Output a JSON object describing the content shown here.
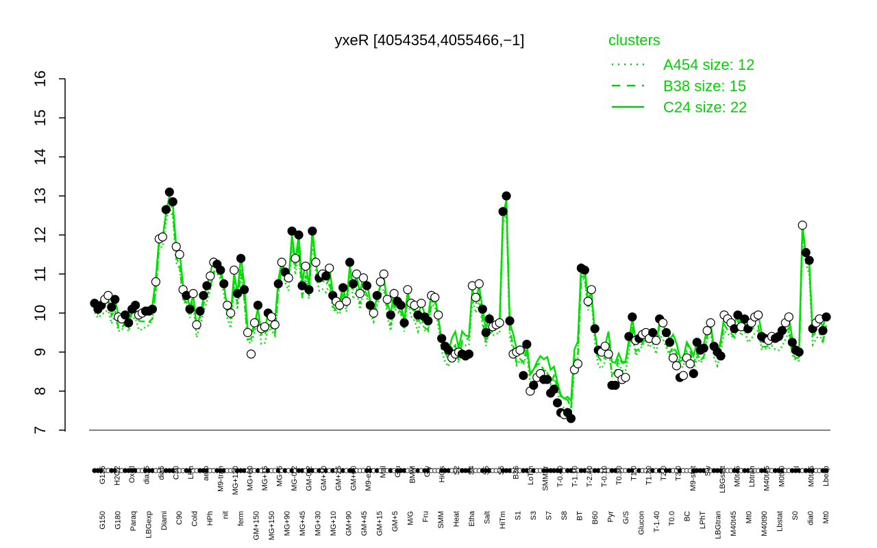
{
  "chart_data": {
    "type": "line",
    "title": "yxeR [4054354,4055466,−1]",
    "ylim": [
      7,
      16
    ],
    "yticks": [
      "7",
      "8",
      "9",
      "10",
      "11",
      "12",
      "13",
      "14",
      "15",
      "16"
    ],
    "legend": {
      "title": "clusters",
      "placement": "top-right",
      "entries": [
        {
          "label": "A454 size: 12",
          "style": "dotted"
        },
        {
          "label": "B38 size: 15",
          "style": "dashed"
        },
        {
          "label": "C24 size: 22",
          "style": "solid"
        }
      ]
    },
    "series_color": "#00e000",
    "x_labels_top": [
      "G135",
      "H2O2",
      "Oxctl",
      "dia15",
      "dia5",
      "C30",
      "LPh",
      "aero",
      "M9-tran",
      "MG+120",
      "MG+60",
      "MG+15",
      "MG+5",
      "MG-0.2",
      "GM-0.2",
      "GM+10",
      "GM+25",
      "GM+60",
      "M9-exp",
      "Mal",
      "Glu",
      "BMM",
      "Gly",
      "HiOs",
      "S2",
      "S4",
      "S5",
      "S6",
      "B36",
      "LoTm",
      "SMMPr",
      "T-0.40",
      "T-1.10",
      "T-2.40",
      "T-0.10",
      "T0.30",
      "T1.0",
      "T1.30",
      "T2.0",
      "T3.0",
      "M9-stat",
      "Sw",
      "LBGstat",
      "M0t45",
      "Lbtran",
      "M40t45",
      "M0t90",
      "BI",
      "M0t45",
      "Lbexp"
    ],
    "x_labels_bottom": [
      "G150",
      "G180",
      "Paraq",
      "LBGexp",
      "Diami",
      "C90",
      "Cold",
      "HPh",
      "nit",
      "ferm",
      "GM+150",
      "MG+150",
      "MG+90",
      "MG+45",
      "MG+30",
      "MG+10",
      "GM+90",
      "GM+45",
      "GM+15",
      "GM+5",
      "M/G",
      "Fru",
      "SMM",
      "Heat",
      "Etha",
      "Salt",
      "HiTm",
      "S1",
      "S3",
      "S7",
      "S8",
      "BT",
      "B60",
      "Pyr",
      "G/S",
      "Glucon",
      "T-1.40",
      "T0.0",
      "BC",
      "LPhT",
      "LBGtran",
      "M40t45",
      "Mt0",
      "M40t90",
      "Lbstat",
      "S0",
      "dia0",
      "Mt0"
    ],
    "points": [
      {
        "x": 1,
        "y": 10.25,
        "f": 1
      },
      {
        "x": 2,
        "y": 10.1,
        "f": 1
      },
      {
        "x": 3,
        "y": 10.2,
        "f": 1
      },
      {
        "x": 4,
        "y": 10.35,
        "f": 0
      },
      {
        "x": 5,
        "y": 10.45,
        "f": 0
      },
      {
        "x": 6,
        "y": 10.15,
        "f": 1
      },
      {
        "x": 7,
        "y": 10.35,
        "f": 1
      },
      {
        "x": 8,
        "y": 9.9,
        "f": 0
      },
      {
        "x": 9,
        "y": 9.85,
        "f": 0
      },
      {
        "x": 10,
        "y": 9.95,
        "f": 1
      },
      {
        "x": 11,
        "y": 9.75,
        "f": 1
      },
      {
        "x": 12,
        "y": 10.1,
        "f": 1
      },
      {
        "x": 13,
        "y": 10.2,
        "f": 1
      },
      {
        "x": 14,
        "y": 9.95,
        "f": 0
      },
      {
        "x": 15,
        "y": 10.0,
        "f": 0
      },
      {
        "x": 16,
        "y": 10.05,
        "f": 1
      },
      {
        "x": 17,
        "y": 10.05,
        "f": 1
      },
      {
        "x": 18,
        "y": 10.1,
        "f": 1
      },
      {
        "x": 19,
        "y": 10.8,
        "f": 0
      },
      {
        "x": 20,
        "y": 11.9,
        "f": 0
      },
      {
        "x": 21,
        "y": 11.95,
        "f": 0
      },
      {
        "x": 22,
        "y": 12.65,
        "f": 1
      },
      {
        "x": 23,
        "y": 13.1,
        "f": 1
      },
      {
        "x": 24,
        "y": 12.85,
        "f": 1
      },
      {
        "x": 25,
        "y": 11.7,
        "f": 0
      },
      {
        "x": 26,
        "y": 11.5,
        "f": 0
      },
      {
        "x": 27,
        "y": 10.6,
        "f": 0
      },
      {
        "x": 28,
        "y": 10.45,
        "f": 1
      },
      {
        "x": 29,
        "y": 10.1,
        "f": 1
      },
      {
        "x": 30,
        "y": 10.5,
        "f": 0
      },
      {
        "x": 31,
        "y": 9.7,
        "f": 0
      },
      {
        "x": 32,
        "y": 10.05,
        "f": 1
      },
      {
        "x": 33,
        "y": 10.45,
        "f": 1
      },
      {
        "x": 34,
        "y": 10.7,
        "f": 1
      },
      {
        "x": 35,
        "y": 10.95,
        "f": 0
      },
      {
        "x": 36,
        "y": 11.3,
        "f": 0
      },
      {
        "x": 37,
        "y": 11.25,
        "f": 1
      },
      {
        "x": 38,
        "y": 11.1,
        "f": 1
      },
      {
        "x": 39,
        "y": 10.75,
        "f": 1
      },
      {
        "x": 40,
        "y": 10.2,
        "f": 0
      },
      {
        "x": 41,
        "y": 10.0,
        "f": 0
      },
      {
        "x": 42,
        "y": 11.1,
        "f": 0
      },
      {
        "x": 43,
        "y": 10.5,
        "f": 1
      },
      {
        "x": 44,
        "y": 11.4,
        "f": 1
      },
      {
        "x": 45,
        "y": 10.6,
        "f": 1
      },
      {
        "x": 46,
        "y": 9.5,
        "f": 0
      },
      {
        "x": 47,
        "y": 8.95,
        "f": 0
      },
      {
        "x": 48,
        "y": 9.75,
        "f": 0
      },
      {
        "x": 49,
        "y": 10.2,
        "f": 1
      },
      {
        "x": 50,
        "y": 9.6,
        "f": 0
      },
      {
        "x": 51,
        "y": 9.65,
        "f": 0
      },
      {
        "x": 52,
        "y": 10.0,
        "f": 1
      },
      {
        "x": 53,
        "y": 9.9,
        "f": 0
      },
      {
        "x": 54,
        "y": 9.7,
        "f": 0
      },
      {
        "x": 55,
        "y": 10.75,
        "f": 1
      },
      {
        "x": 56,
        "y": 11.3,
        "f": 0
      },
      {
        "x": 57,
        "y": 11.05,
        "f": 1
      },
      {
        "x": 58,
        "y": 10.9,
        "f": 0
      },
      {
        "x": 59,
        "y": 12.1,
        "f": 1
      },
      {
        "x": 60,
        "y": 11.4,
        "f": 0
      },
      {
        "x": 61,
        "y": 12.0,
        "f": 1
      },
      {
        "x": 62,
        "y": 10.7,
        "f": 1
      },
      {
        "x": 63,
        "y": 11.2,
        "f": 0
      },
      {
        "x": 64,
        "y": 10.6,
        "f": 1
      },
      {
        "x": 65,
        "y": 12.1,
        "f": 1
      },
      {
        "x": 66,
        "y": 11.3,
        "f": 0
      },
      {
        "x": 67,
        "y": 10.9,
        "f": 1
      },
      {
        "x": 68,
        "y": 11.0,
        "f": 0
      },
      {
        "x": 69,
        "y": 10.95,
        "f": 1
      },
      {
        "x": 70,
        "y": 11.15,
        "f": 0
      },
      {
        "x": 71,
        "y": 10.45,
        "f": 1
      },
      {
        "x": 72,
        "y": 10.3,
        "f": 0
      },
      {
        "x": 73,
        "y": 10.2,
        "f": 0
      },
      {
        "x": 74,
        "y": 10.65,
        "f": 1
      },
      {
        "x": 75,
        "y": 10.3,
        "f": 0
      },
      {
        "x": 76,
        "y": 11.3,
        "f": 1
      },
      {
        "x": 77,
        "y": 10.75,
        "f": 1
      },
      {
        "x": 78,
        "y": 11.0,
        "f": 0
      },
      {
        "x": 79,
        "y": 10.5,
        "f": 0
      },
      {
        "x": 80,
        "y": 10.9,
        "f": 0
      },
      {
        "x": 81,
        "y": 10.7,
        "f": 1
      },
      {
        "x": 82,
        "y": 10.2,
        "f": 1
      },
      {
        "x": 83,
        "y": 10.0,
        "f": 0
      },
      {
        "x": 84,
        "y": 10.45,
        "f": 1
      },
      {
        "x": 85,
        "y": 10.8,
        "f": 0
      },
      {
        "x": 86,
        "y": 11.0,
        "f": 0
      },
      {
        "x": 87,
        "y": 10.35,
        "f": 0
      },
      {
        "x": 88,
        "y": 9.95,
        "f": 1
      },
      {
        "x": 89,
        "y": 10.5,
        "f": 0
      },
      {
        "x": 90,
        "y": 10.3,
        "f": 1
      },
      {
        "x": 91,
        "y": 10.2,
        "f": 1
      },
      {
        "x": 92,
        "y": 9.75,
        "f": 1
      },
      {
        "x": 93,
        "y": 10.6,
        "f": 0
      },
      {
        "x": 94,
        "y": 10.25,
        "f": 0
      },
      {
        "x": 95,
        "y": 10.2,
        "f": 0
      },
      {
        "x": 96,
        "y": 9.95,
        "f": 1
      },
      {
        "x": 97,
        "y": 10.25,
        "f": 0
      },
      {
        "x": 98,
        "y": 9.9,
        "f": 1
      },
      {
        "x": 99,
        "y": 9.8,
        "f": 1
      },
      {
        "x": 100,
        "y": 10.45,
        "f": 0
      },
      {
        "x": 101,
        "y": 10.4,
        "f": 0
      },
      {
        "x": 102,
        "y": 9.95,
        "f": 0
      },
      {
        "x": 103,
        "y": 9.35,
        "f": 1
      },
      {
        "x": 104,
        "y": 9.15,
        "f": 1
      },
      {
        "x": 105,
        "y": 9.05,
        "f": 1
      },
      {
        "x": 106,
        "y": 8.85,
        "f": 0
      },
      {
        "x": 107,
        "y": 8.95,
        "f": 0
      },
      {
        "x": 108,
        "y": 9.0,
        "f": 0
      },
      {
        "x": 109,
        "y": 8.95,
        "f": 1
      },
      {
        "x": 110,
        "y": 8.9,
        "f": 1
      },
      {
        "x": 111,
        "y": 8.95,
        "f": 1
      },
      {
        "x": 112,
        "y": 10.7,
        "f": 0
      },
      {
        "x": 113,
        "y": 10.4,
        "f": 0
      },
      {
        "x": 114,
        "y": 10.75,
        "f": 0
      },
      {
        "x": 115,
        "y": 10.1,
        "f": 1
      },
      {
        "x": 116,
        "y": 9.5,
        "f": 1
      },
      {
        "x": 117,
        "y": 9.85,
        "f": 1
      },
      {
        "x": 118,
        "y": 9.65,
        "f": 0
      },
      {
        "x": 119,
        "y": 9.7,
        "f": 0
      },
      {
        "x": 120,
        "y": 9.75,
        "f": 0
      },
      {
        "x": 121,
        "y": 12.6,
        "f": 1
      },
      {
        "x": 122,
        "y": 13.0,
        "f": 1
      },
      {
        "x": 123,
        "y": 9.8,
        "f": 1
      },
      {
        "x": 124,
        "y": 8.95,
        "f": 0
      },
      {
        "x": 125,
        "y": 9.0,
        "f": 0
      },
      {
        "x": 126,
        "y": 9.05,
        "f": 0
      },
      {
        "x": 127,
        "y": 8.4,
        "f": 1
      },
      {
        "x": 128,
        "y": 9.2,
        "f": 1
      },
      {
        "x": 129,
        "y": 8.0,
        "f": 0
      },
      {
        "x": 130,
        "y": 8.15,
        "f": 1
      },
      {
        "x": 131,
        "y": 8.35,
        "f": 0
      },
      {
        "x": 132,
        "y": 8.45,
        "f": 0
      },
      {
        "x": 133,
        "y": 8.3,
        "f": 1
      },
      {
        "x": 134,
        "y": 8.3,
        "f": 1
      },
      {
        "x": 135,
        "y": 7.95,
        "f": 1
      },
      {
        "x": 136,
        "y": 8.05,
        "f": 1
      },
      {
        "x": 137,
        "y": 7.7,
        "f": 1
      },
      {
        "x": 138,
        "y": 7.45,
        "f": 1
      },
      {
        "x": 139,
        "y": 7.4,
        "f": 0
      },
      {
        "x": 140,
        "y": 7.45,
        "f": 1
      },
      {
        "x": 141,
        "y": 7.3,
        "f": 1
      },
      {
        "x": 142,
        "y": 8.55,
        "f": 0
      },
      {
        "x": 143,
        "y": 8.7,
        "f": 0
      },
      {
        "x": 144,
        "y": 11.15,
        "f": 1
      },
      {
        "x": 145,
        "y": 11.1,
        "f": 1
      },
      {
        "x": 146,
        "y": 10.3,
        "f": 0
      },
      {
        "x": 147,
        "y": 10.6,
        "f": 0
      },
      {
        "x": 148,
        "y": 9.6,
        "f": 1
      },
      {
        "x": 149,
        "y": 9.05,
        "f": 1
      },
      {
        "x": 150,
        "y": 9.0,
        "f": 0
      },
      {
        "x": 151,
        "y": 9.15,
        "f": 0
      },
      {
        "x": 152,
        "y": 8.95,
        "f": 0
      },
      {
        "x": 153,
        "y": 8.15,
        "f": 1
      },
      {
        "x": 154,
        "y": 8.15,
        "f": 1
      },
      {
        "x": 155,
        "y": 8.45,
        "f": 0
      },
      {
        "x": 156,
        "y": 8.3,
        "f": 0
      },
      {
        "x": 157,
        "y": 8.35,
        "f": 0
      },
      {
        "x": 158,
        "y": 9.4,
        "f": 1
      },
      {
        "x": 159,
        "y": 9.9,
        "f": 1
      },
      {
        "x": 160,
        "y": 9.3,
        "f": 0
      },
      {
        "x": 161,
        "y": 9.35,
        "f": 1
      },
      {
        "x": 162,
        "y": 9.45,
        "f": 0
      },
      {
        "x": 163,
        "y": 9.5,
        "f": 0
      },
      {
        "x": 164,
        "y": 9.35,
        "f": 0
      },
      {
        "x": 165,
        "y": 9.5,
        "f": 1
      },
      {
        "x": 166,
        "y": 9.3,
        "f": 0
      },
      {
        "x": 167,
        "y": 9.85,
        "f": 1
      },
      {
        "x": 168,
        "y": 9.75,
        "f": 0
      },
      {
        "x": 169,
        "y": 9.5,
        "f": 1
      },
      {
        "x": 170,
        "y": 9.25,
        "f": 1
      },
      {
        "x": 171,
        "y": 8.85,
        "f": 0
      },
      {
        "x": 172,
        "y": 8.65,
        "f": 0
      },
      {
        "x": 173,
        "y": 8.35,
        "f": 1
      },
      {
        "x": 174,
        "y": 8.4,
        "f": 0
      },
      {
        "x": 175,
        "y": 8.85,
        "f": 0
      },
      {
        "x": 176,
        "y": 8.7,
        "f": 0
      },
      {
        "x": 177,
        "y": 8.45,
        "f": 1
      },
      {
        "x": 178,
        "y": 9.25,
        "f": 1
      },
      {
        "x": 179,
        "y": 9.05,
        "f": 1
      },
      {
        "x": 180,
        "y": 9.1,
        "f": 1
      },
      {
        "x": 181,
        "y": 9.55,
        "f": 0
      },
      {
        "x": 182,
        "y": 9.75,
        "f": 0
      },
      {
        "x": 183,
        "y": 9.15,
        "f": 1
      },
      {
        "x": 184,
        "y": 9.0,
        "f": 1
      },
      {
        "x": 185,
        "y": 8.9,
        "f": 1
      },
      {
        "x": 186,
        "y": 9.95,
        "f": 0
      },
      {
        "x": 187,
        "y": 9.85,
        "f": 0
      },
      {
        "x": 188,
        "y": 9.75,
        "f": 0
      },
      {
        "x": 189,
        "y": 9.6,
        "f": 1
      },
      {
        "x": 190,
        "y": 9.95,
        "f": 1
      },
      {
        "x": 191,
        "y": 9.65,
        "f": 0
      },
      {
        "x": 192,
        "y": 9.85,
        "f": 1
      },
      {
        "x": 193,
        "y": 9.6,
        "f": 1
      },
      {
        "x": 194,
        "y": 9.75,
        "f": 0
      },
      {
        "x": 195,
        "y": 9.9,
        "f": 0
      },
      {
        "x": 196,
        "y": 9.95,
        "f": 0
      },
      {
        "x": 197,
        "y": 9.4,
        "f": 1
      },
      {
        "x": 198,
        "y": 9.35,
        "f": 1
      },
      {
        "x": 199,
        "y": 9.3,
        "f": 0
      },
      {
        "x": 200,
        "y": 9.4,
        "f": 0
      },
      {
        "x": 201,
        "y": 9.35,
        "f": 1
      },
      {
        "x": 202,
        "y": 9.4,
        "f": 1
      },
      {
        "x": 203,
        "y": 9.55,
        "f": 1
      },
      {
        "x": 204,
        "y": 9.75,
        "f": 0
      },
      {
        "x": 205,
        "y": 9.9,
        "f": 0
      },
      {
        "x": 206,
        "y": 9.25,
        "f": 1
      },
      {
        "x": 207,
        "y": 9.05,
        "f": 1
      },
      {
        "x": 208,
        "y": 9.0,
        "f": 1
      },
      {
        "x": 209,
        "y": 12.25,
        "f": 0
      },
      {
        "x": 210,
        "y": 11.55,
        "f": 1
      },
      {
        "x": 211,
        "y": 11.35,
        "f": 1
      },
      {
        "x": 212,
        "y": 9.6,
        "f": 1
      },
      {
        "x": 213,
        "y": 9.75,
        "f": 0
      },
      {
        "x": 214,
        "y": 9.85,
        "f": 0
      },
      {
        "x": 215,
        "y": 9.55,
        "f": 1
      },
      {
        "x": 216,
        "y": 9.9,
        "f": 1
      }
    ]
  }
}
